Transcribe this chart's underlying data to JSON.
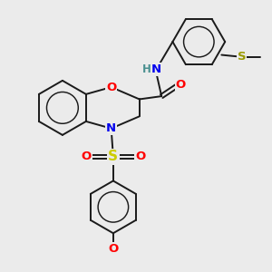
{
  "background_color": "#ebebeb",
  "bond_color": "#1a1a1a",
  "atom_colors": {
    "O": "#ff0000",
    "N": "#0000ee",
    "S_sulfone": "#cccc00",
    "S_thioether": "#999900",
    "H": "#4a9090",
    "C": "#1a1a1a"
  },
  "figsize": [
    3.0,
    3.0
  ],
  "dpi": 100
}
